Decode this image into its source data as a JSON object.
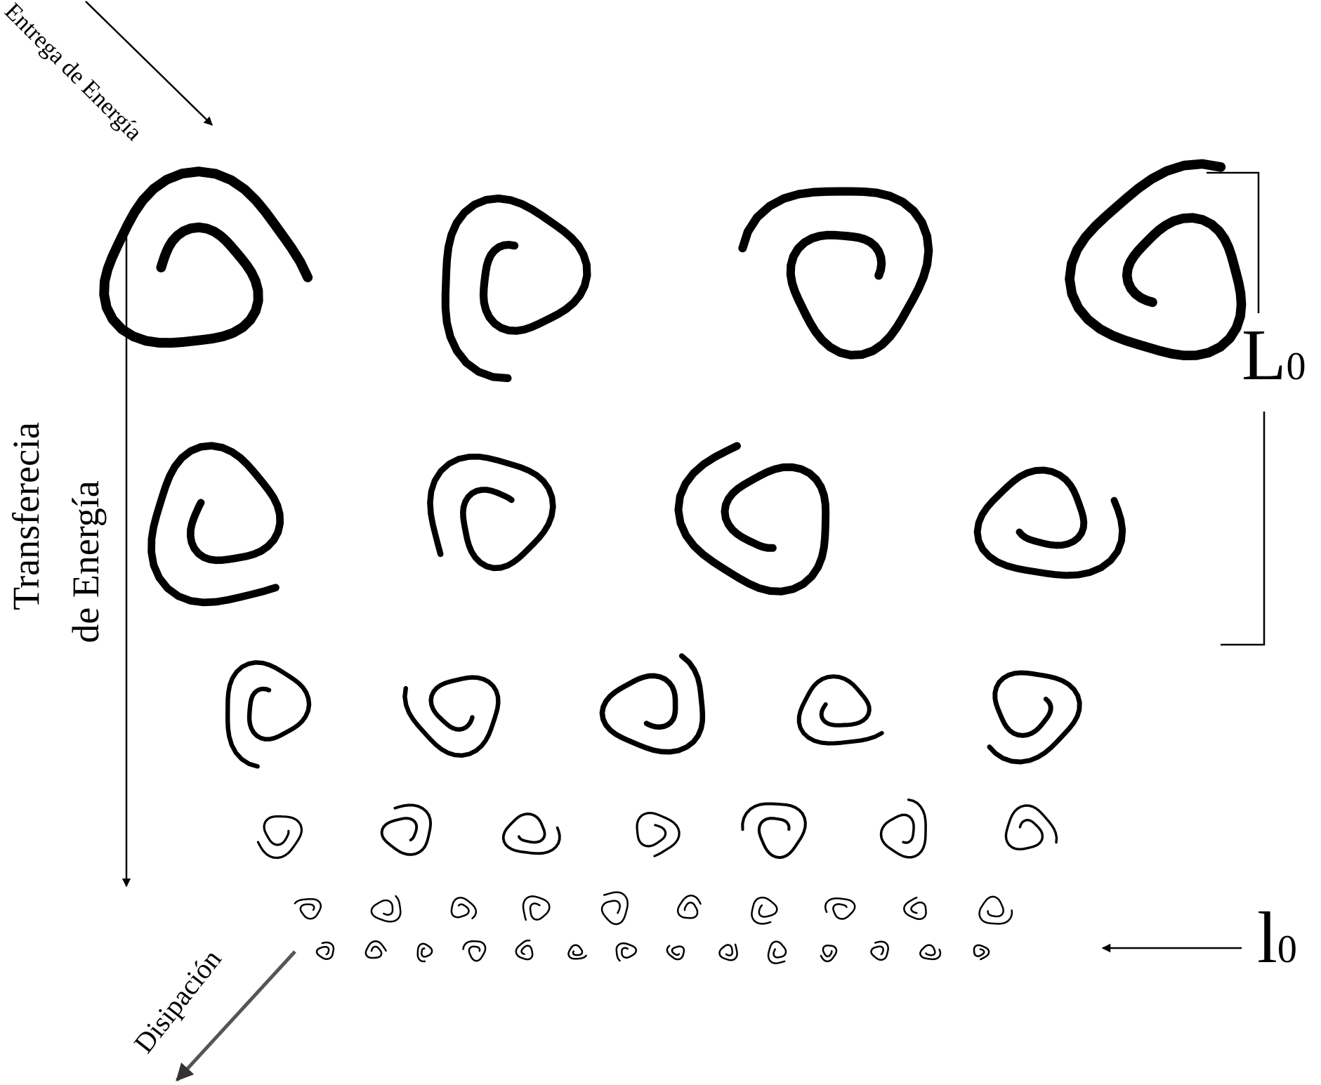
{
  "labels": {
    "energy_input": "Entrega de Energía",
    "transfer_line1": "Transferecia",
    "transfer_line2": "de Energía",
    "dissipation": "Disipación",
    "large_scale_symbol": "L",
    "large_scale_subscript": "0",
    "small_scale_symbol": "l",
    "small_scale_subscript": "0"
  },
  "cascade": {
    "rows": [
      {
        "eddy_count": 4,
        "relative_size": 1.0
      },
      {
        "eddy_count": 4,
        "relative_size": 0.8
      },
      {
        "eddy_count": 5,
        "relative_size": 0.55
      },
      {
        "eddy_count": 7,
        "relative_size": 0.32
      },
      {
        "eddy_count": 10,
        "relative_size": 0.17
      },
      {
        "eddy_count": 14,
        "relative_size": 0.1
      }
    ]
  },
  "colors": {
    "ink": "#000000",
    "background": "#ffffff",
    "dissipation_arrow": "#555555"
  }
}
